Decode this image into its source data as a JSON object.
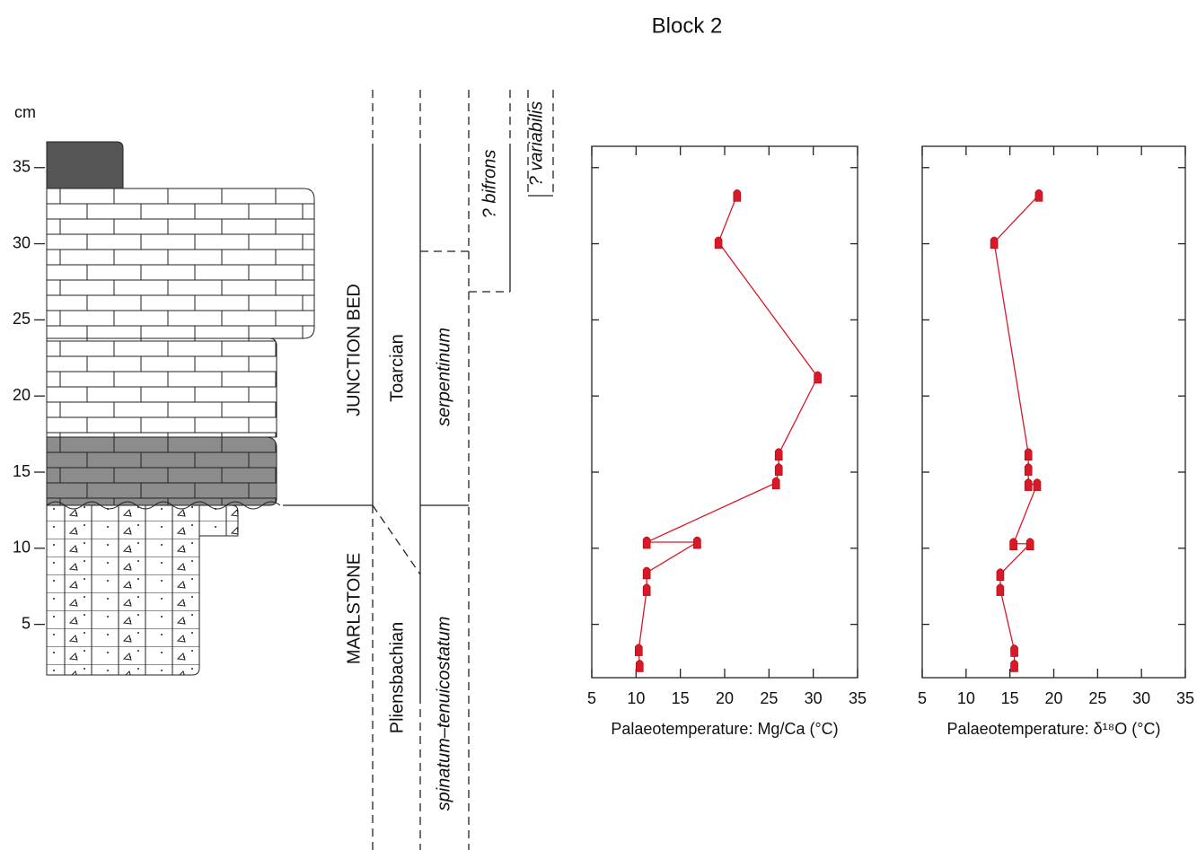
{
  "title": "Block 2",
  "depth_axis": {
    "label": "cm",
    "ylim": [
      1.5,
      36.4
    ],
    "yticks": [
      5,
      10,
      15,
      20,
      25,
      30,
      35
    ]
  },
  "stratigraphy": {
    "member_upper": "JUNCTION BED",
    "member_lower": "MARLSTONE",
    "stage_upper": "Toarcian",
    "stage_lower": "Pliensbachian",
    "zone_upper": "serpentinum",
    "zone_lower": "spinatum–tenuicostatum",
    "subzone_1": "? bifrons",
    "subzone_2": "? variabilis"
  },
  "chart_data": [
    {
      "type": "line",
      "xlabel": "Palaeotemperature: Mg/Ca (°C)",
      "color": "#d7192a",
      "x": [
        21.4,
        19.3,
        30.5,
        26.1,
        26.1,
        25.8,
        11.2,
        16.9,
        11.2,
        11.2,
        10.3,
        10.4
      ],
      "y": [
        33.2,
        30.1,
        21.25,
        16.2,
        15.2,
        14.3,
        10.4,
        10.4,
        8.4,
        7.3,
        3.35,
        2.3
      ],
      "xlim": [
        5,
        35
      ],
      "xticks": [
        5,
        10,
        15,
        20,
        25,
        30,
        35
      ],
      "ylim": [
        1.5,
        36.4
      ],
      "yticks": [
        5,
        10,
        15,
        20,
        25,
        30,
        35
      ]
    },
    {
      "type": "line",
      "xlabel": "Palaeotemperature: δ¹⁸O (°C)",
      "color": "#d7192a",
      "x": [
        18.3,
        13.2,
        17.1,
        17.1,
        17.1,
        18.1,
        15.4,
        17.3,
        13.9,
        13.9,
        15.5,
        15.5
      ],
      "y": [
        33.2,
        30.1,
        16.2,
        15.2,
        14.2,
        14.2,
        10.3,
        10.3,
        8.3,
        7.3,
        3.3,
        2.3
      ],
      "xlim": [
        5,
        35
      ],
      "xticks": [
        5,
        10,
        15,
        20,
        25,
        30,
        35
      ],
      "ylim": [
        1.5,
        36.4
      ],
      "yticks": [
        5,
        10,
        15,
        20,
        25,
        30,
        35
      ]
    }
  ]
}
